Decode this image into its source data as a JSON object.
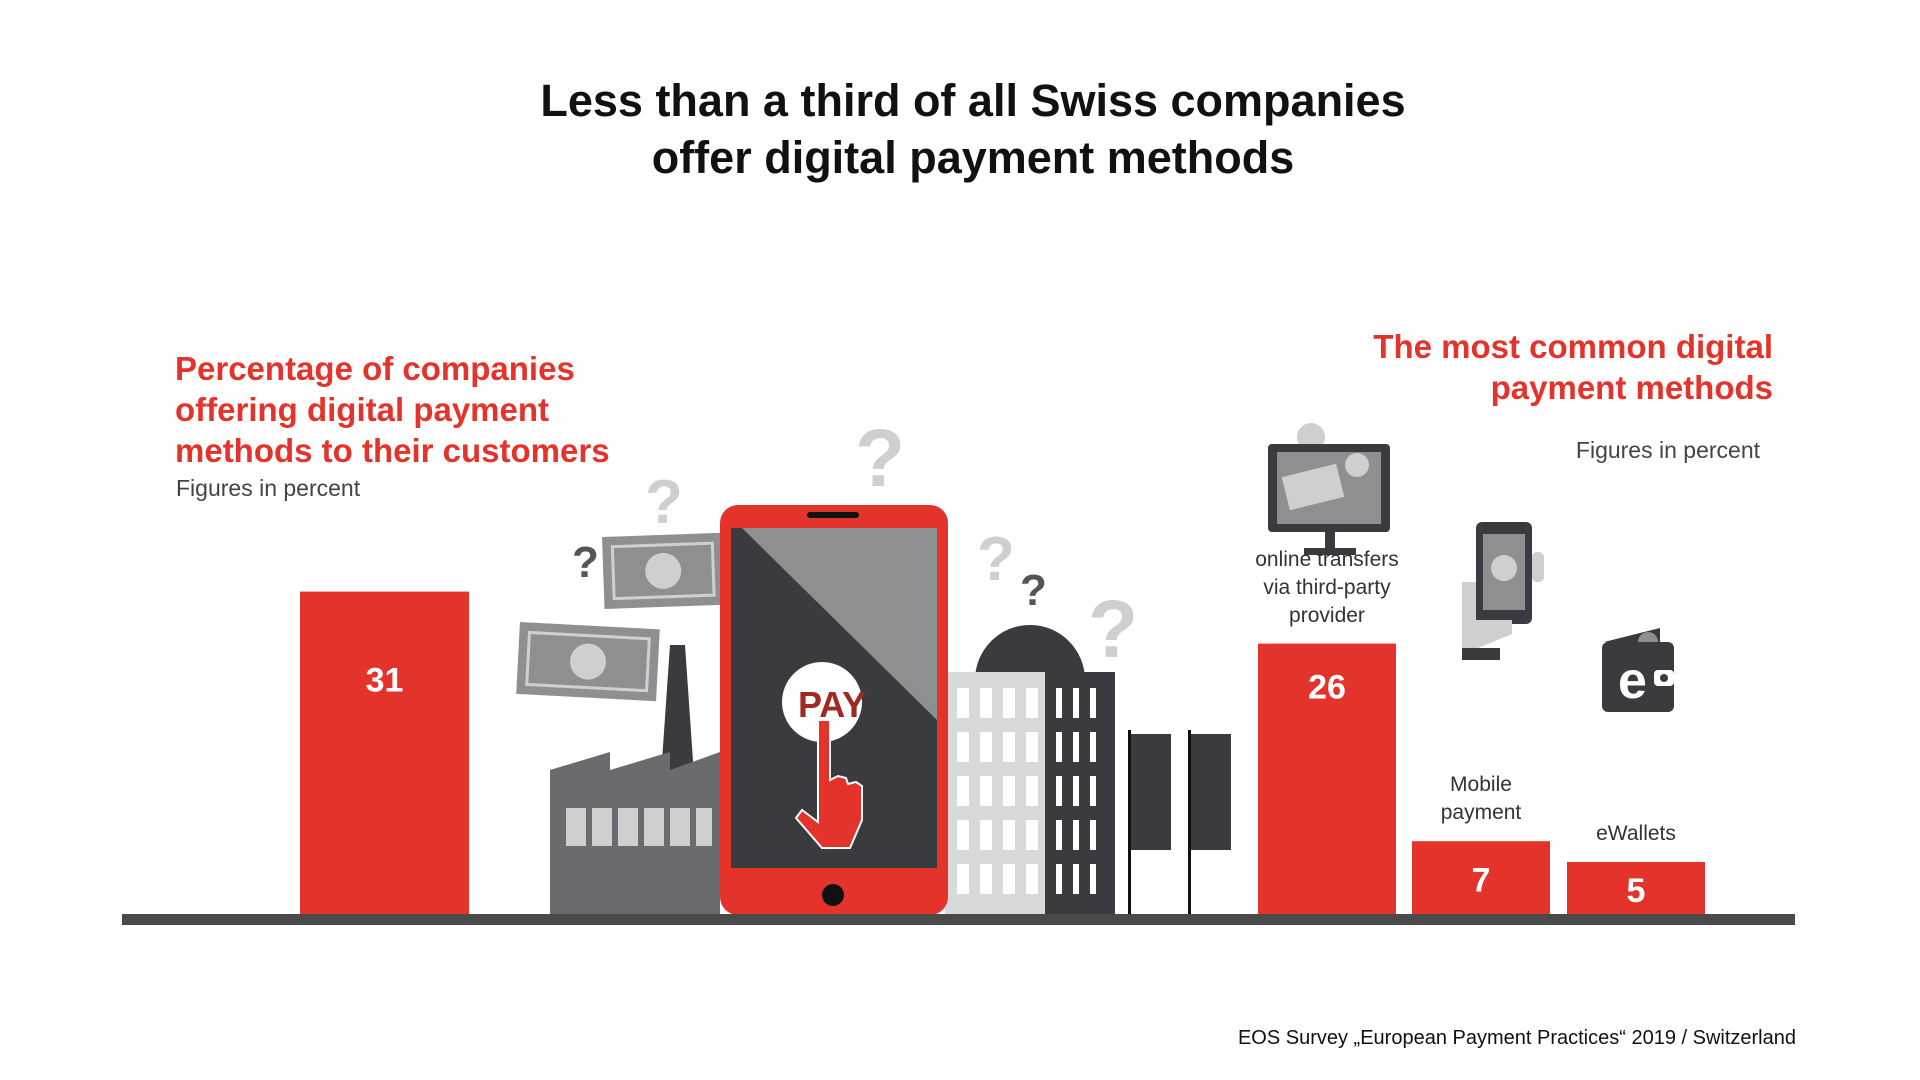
{
  "title": {
    "line1": "Less than a third of all Swiss companies",
    "line2": "offer digital payment methods"
  },
  "left_panel": {
    "heading_lines": [
      "Percentage of companies",
      "offering digital payment",
      "methods to their customers"
    ],
    "subtitle": "Figures in percent"
  },
  "right_panel": {
    "heading_lines": [
      "The most common digital",
      "payment methods"
    ],
    "subtitle": "Figures in percent"
  },
  "source": "EOS Survey „European Payment Practices“ 2019 / Switzerland",
  "illustration": {
    "pay_label": "PAY"
  },
  "icons": {
    "left": [
      "banknote-icon",
      "factory-icon",
      "smartphone-icon",
      "building-icon",
      "question-mark-icon"
    ],
    "right": [
      "monitor-icon",
      "phone-in-hand-icon",
      "wallet-icon"
    ]
  },
  "colors": {
    "accent_red": "#e3332a",
    "dark_gray": "#3a3b3e",
    "mid_gray": "#8e8f91",
    "light_gray": "#cfcfcf",
    "baseline": "#4a4a4a"
  },
  "chart_data": [
    {
      "type": "bar",
      "categories": [
        ""
      ],
      "values": [
        31
      ],
      "title": "Percentage of companies offering digital payment methods to their customers",
      "subtitle": "Figures in percent",
      "data_labels": [
        "31"
      ]
    },
    {
      "type": "bar",
      "categories": [
        "online transfers via third-party provider",
        "Mobile payment",
        "eWallets"
      ],
      "category_lines": [
        [
          "online transfers",
          "via third-party",
          "provider"
        ],
        [
          "Mobile",
          "payment"
        ],
        [
          "eWallets"
        ]
      ],
      "values": [
        26,
        7,
        5
      ],
      "title": "The most common digital payment methods",
      "subtitle": "Figures in percent",
      "data_labels": [
        "26",
        "7",
        "5"
      ]
    }
  ]
}
